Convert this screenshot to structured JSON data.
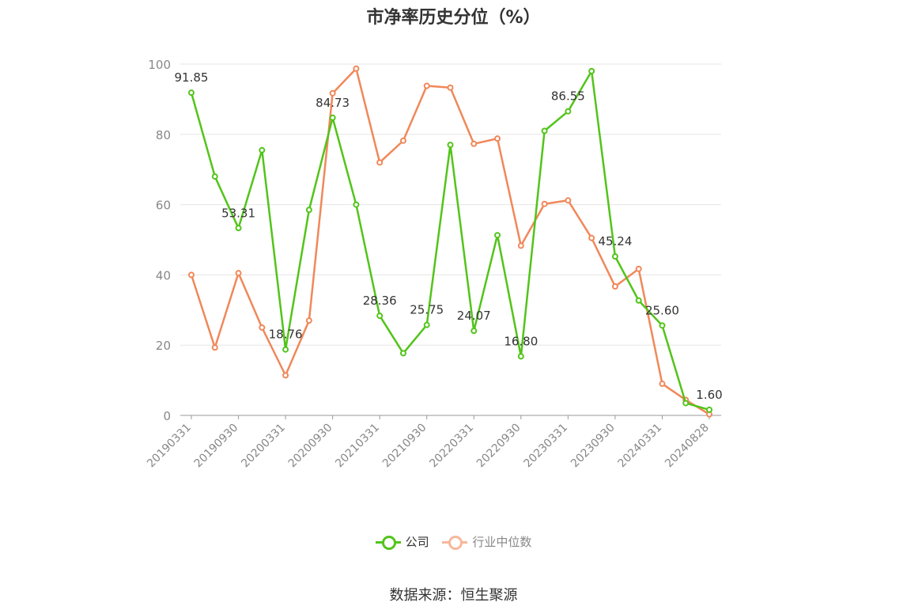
{
  "chart_data": {
    "type": "line",
    "title": "市净率历史分位（%）",
    "ylim": [
      0,
      100
    ],
    "yticks": [
      0,
      20,
      40,
      60,
      80,
      100
    ],
    "x": [
      "20190331",
      "20190630",
      "20190930",
      "20191231",
      "20200331",
      "20200630",
      "20200930",
      "20201231",
      "20210331",
      "20210630",
      "20210930",
      "20211231",
      "20220331",
      "20220630",
      "20220930",
      "20221231",
      "20230331",
      "20230630",
      "20230930",
      "20231231",
      "20240331",
      "20240630",
      "20240828"
    ],
    "xtick_labels": [
      "20190331",
      "20190930",
      "20200331",
      "20200930",
      "20210331",
      "20210930",
      "20220331",
      "20220930",
      "20230331",
      "20230930",
      "20240331",
      "20240828"
    ],
    "grid": true,
    "legend_position": "bottom",
    "series": [
      {
        "name": "公司",
        "color": "#52c41a",
        "values": [
          91.85,
          68.0,
          53.31,
          75.5,
          18.76,
          58.5,
          84.73,
          60.0,
          28.36,
          17.7,
          25.75,
          77.0,
          24.07,
          51.3,
          16.8,
          81.0,
          86.55,
          98.0,
          45.24,
          32.7,
          25.6,
          3.5,
          1.6
        ],
        "labels": {
          "0": "91.85",
          "2": "53.31",
          "4": "18.76",
          "6": "84.73",
          "8": "28.36",
          "10": "25.75",
          "12": "24.07",
          "14": "16.80",
          "16": "86.55",
          "18": "45.24",
          "20": "25.60",
          "22": "1.60"
        }
      },
      {
        "name": "行业中位数",
        "color": "#f0885a",
        "values": [
          40.0,
          19.3,
          40.5,
          25.0,
          11.4,
          27.0,
          91.7,
          98.7,
          72.0,
          78.2,
          93.8,
          93.3,
          77.3,
          78.8,
          48.3,
          60.2,
          61.2,
          50.5,
          36.7,
          41.7,
          9.0,
          4.4,
          0.3
        ]
      }
    ]
  },
  "legend": {
    "items": [
      {
        "label": "公司",
        "color": "#52c41a"
      },
      {
        "label": "行业中位数",
        "color": "#f7b89b"
      }
    ]
  },
  "source": "数据来源：恒生聚源"
}
